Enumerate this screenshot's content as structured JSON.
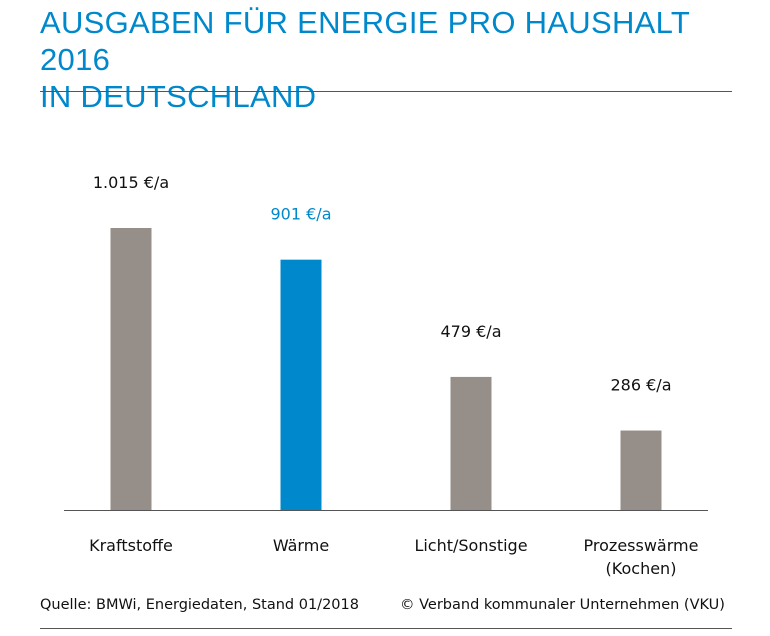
{
  "title_line1": "AUSGABEN FÜR ENERGIE PRO HAUSHALT 2016",
  "title_line2": "IN DEUTSCHLAND",
  "source": "Quelle: BMWi, Energiedaten, Stand 01/2018",
  "copyright": "© Verband kommunaler Unternehmen (VKU)",
  "colors": {
    "title": "#0088cc",
    "bar": "#968e88",
    "highlight": "#0088cc"
  },
  "chart_data": {
    "type": "bar",
    "title": "AUSGABEN FÜR ENERGIE PRO HAUSHALT 2016 IN DEUTSCHLAND",
    "xlabel": "",
    "ylabel": "",
    "unit": "€/a",
    "categories": [
      [
        "Kraftstoffe"
      ],
      [
        "Wärme"
      ],
      [
        "Licht/Sonstige"
      ],
      [
        "Prozesswärme",
        "(Kochen)"
      ]
    ],
    "values": [
      1015,
      901,
      479,
      286
    ],
    "value_labels": [
      "1.015 €/a",
      "901 €/a",
      "479 €/a",
      "286 €/a"
    ],
    "highlight_index": 1,
    "ylim": [
      0,
      1015
    ],
    "grid": false,
    "legend": "none"
  }
}
